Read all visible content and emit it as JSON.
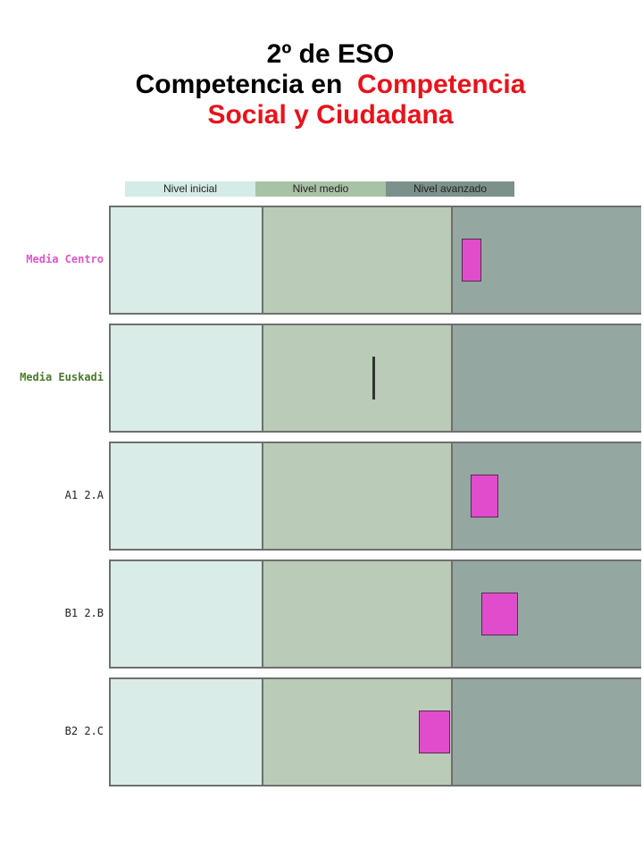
{
  "title": {
    "line1": "2º de ESO",
    "line2_black": "Competencia en  ",
    "line2_red": "Competencia",
    "line3": "Social y Ciudadana"
  },
  "colors": {
    "title_red": "#e8121b",
    "marker": "#e04ccc",
    "label_pink": "#e055c7",
    "label_green": "#4a7a2e"
  },
  "chart_data": {
    "type": "bar",
    "title": "2º de ESO Competencia en  Competencia Social y Ciudadana",
    "legend": [
      "Nivel inicial",
      "Nivel medio",
      "Nivel avanzado"
    ],
    "legend_position": "top",
    "categories": [
      "Media Centro",
      "Media Euskadi",
      "A1  2.A",
      "B1  2.B",
      "B2  2.C"
    ],
    "series": [
      {
        "values": [
          0.68,
          0.495,
          0.705,
          0.733,
          0.61
        ],
        "marker": [
          "box",
          "line",
          "box",
          "box",
          "box"
        ]
      }
    ],
    "marker_widths": [
      0.036,
      0,
      0.052,
      0.07,
      0.059
    ],
    "marker_heights": [
      0.41,
      0.41,
      0.41,
      0.41,
      0.41
    ],
    "xlim": [
      0,
      1
    ],
    "zones": [
      0.285,
      0.64
    ],
    "grid": false
  }
}
